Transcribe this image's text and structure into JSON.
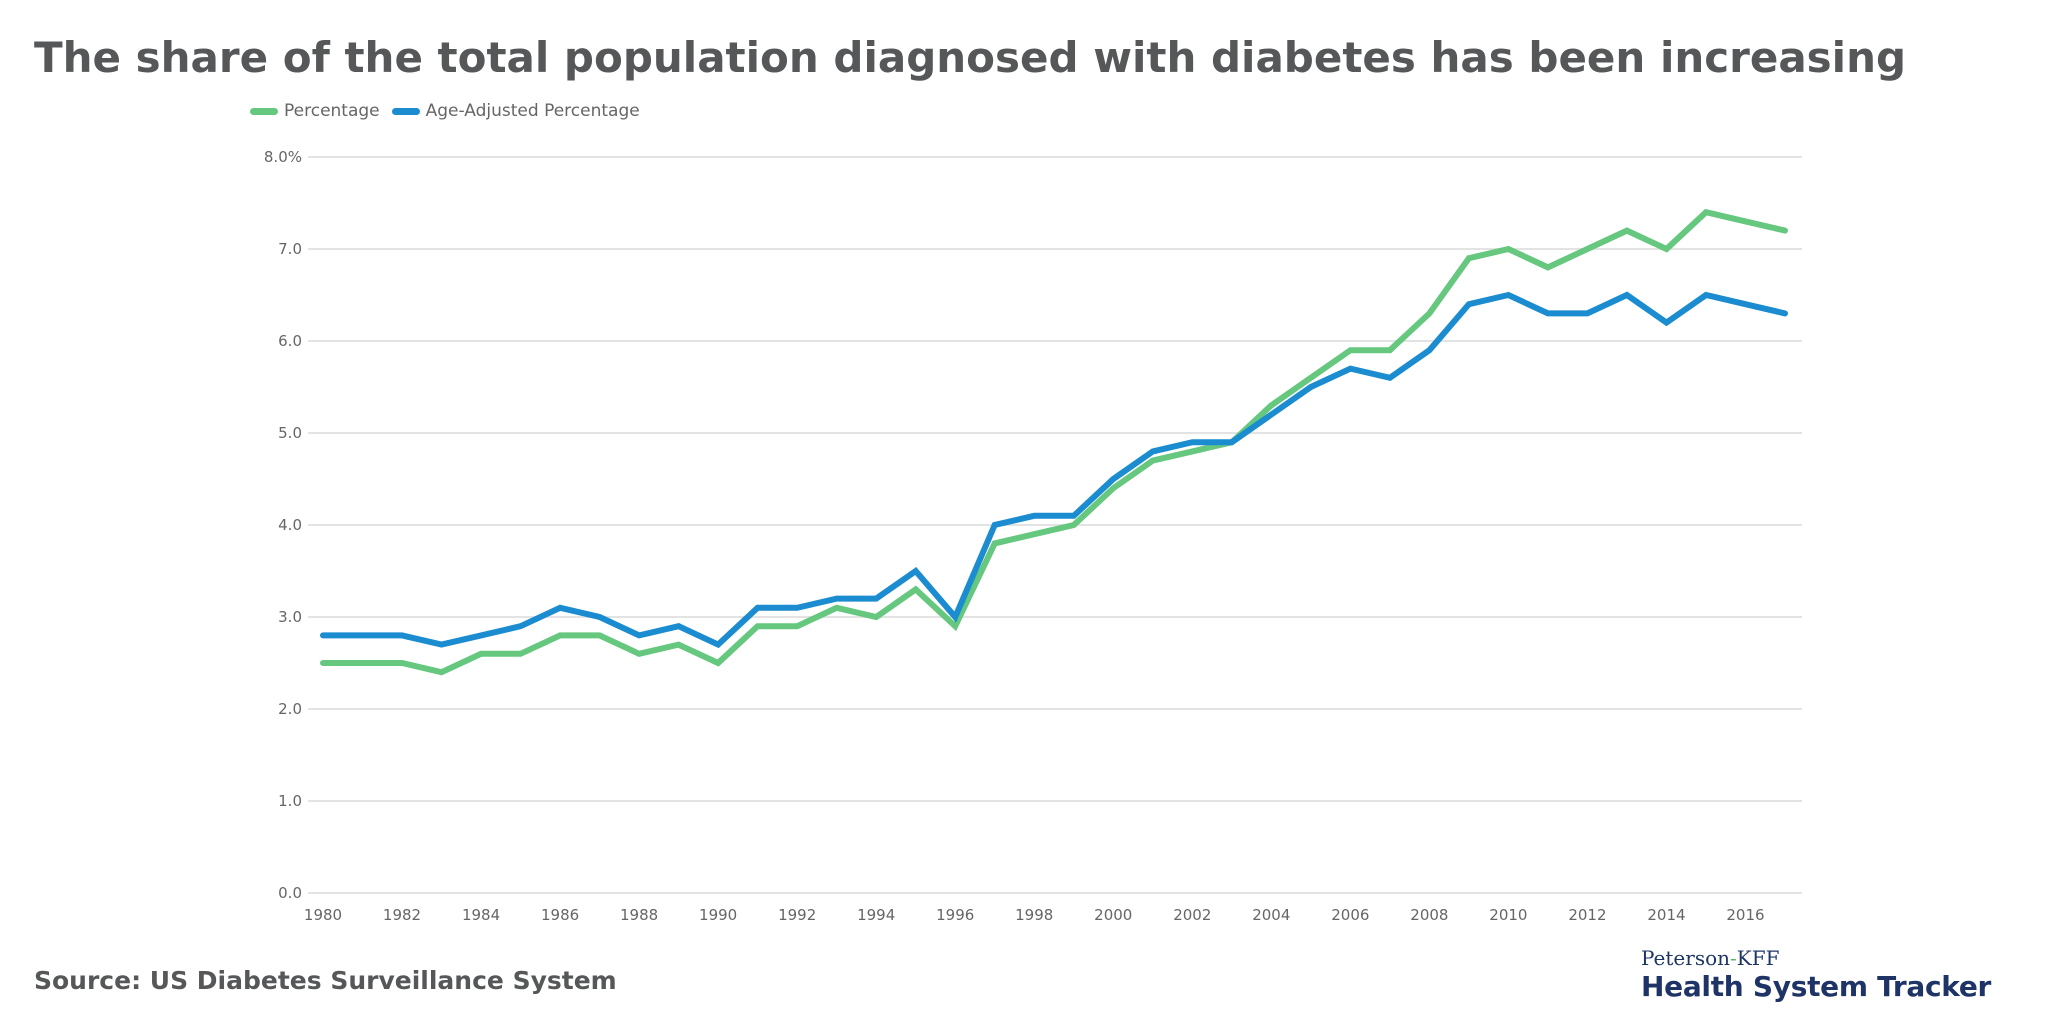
{
  "title": "The share of the total population diagnosed with diabetes has been increasing",
  "source": "Source: US Diabetes Surveillance System",
  "logo": {
    "top_left": "Peterson",
    "top_dash": "-",
    "top_right": "KFF",
    "main": "Health System Tracker"
  },
  "colors": {
    "percentage": "#66c77f",
    "age_adjusted": "#1a8ccf",
    "grid": "#e3e3e3",
    "title": "#555759",
    "logo": "#1e3466"
  },
  "chart_data": {
    "type": "line",
    "title": "The share of the total population diagnosed with diabetes has been increasing",
    "xlabel": "",
    "ylabel": "",
    "x": [
      1980,
      1981,
      1982,
      1983,
      1984,
      1985,
      1986,
      1987,
      1988,
      1989,
      1990,
      1991,
      1992,
      1993,
      1994,
      1995,
      1996,
      1997,
      1998,
      1999,
      2000,
      2001,
      2002,
      2003,
      2004,
      2005,
      2006,
      2007,
      2008,
      2009,
      2010,
      2011,
      2012,
      2013,
      2014,
      2015,
      2016,
      2017
    ],
    "xticks": [
      "1980",
      "1982",
      "1984",
      "1986",
      "1988",
      "1990",
      "1992",
      "1994",
      "1996",
      "1998",
      "2000",
      "2002",
      "2004",
      "2006",
      "2008",
      "2010",
      "2012",
      "2014",
      "2016"
    ],
    "yticks": [
      "0.0",
      "1.0",
      "2.0",
      "3.0",
      "4.0",
      "5.0",
      "6.0",
      "7.0",
      "8.0%"
    ],
    "ylim": [
      0,
      8
    ],
    "grid": true,
    "legend_position": "top-left",
    "series": [
      {
        "name": "Percentage",
        "color": "#66c77f",
        "values": [
          2.5,
          2.5,
          2.5,
          2.4,
          2.6,
          2.6,
          2.8,
          2.8,
          2.6,
          2.7,
          2.5,
          2.9,
          2.9,
          3.1,
          3.0,
          3.3,
          2.9,
          3.8,
          3.9,
          4.0,
          4.4,
          4.7,
          4.8,
          4.9,
          5.3,
          5.6,
          5.9,
          5.9,
          6.3,
          6.9,
          7.0,
          6.8,
          7.0,
          7.2,
          7.0,
          7.4,
          7.3,
          7.2
        ]
      },
      {
        "name": "Age-Adjusted Percentage",
        "color": "#1a8ccf",
        "values": [
          2.8,
          2.8,
          2.8,
          2.7,
          2.8,
          2.9,
          3.1,
          3.0,
          2.8,
          2.9,
          2.7,
          3.1,
          3.1,
          3.2,
          3.2,
          3.5,
          3.0,
          4.0,
          4.1,
          4.1,
          4.5,
          4.8,
          4.9,
          4.9,
          5.2,
          5.5,
          5.7,
          5.6,
          5.9,
          6.4,
          6.5,
          6.3,
          6.3,
          6.5,
          6.2,
          6.5,
          6.4,
          6.3
        ]
      }
    ]
  }
}
